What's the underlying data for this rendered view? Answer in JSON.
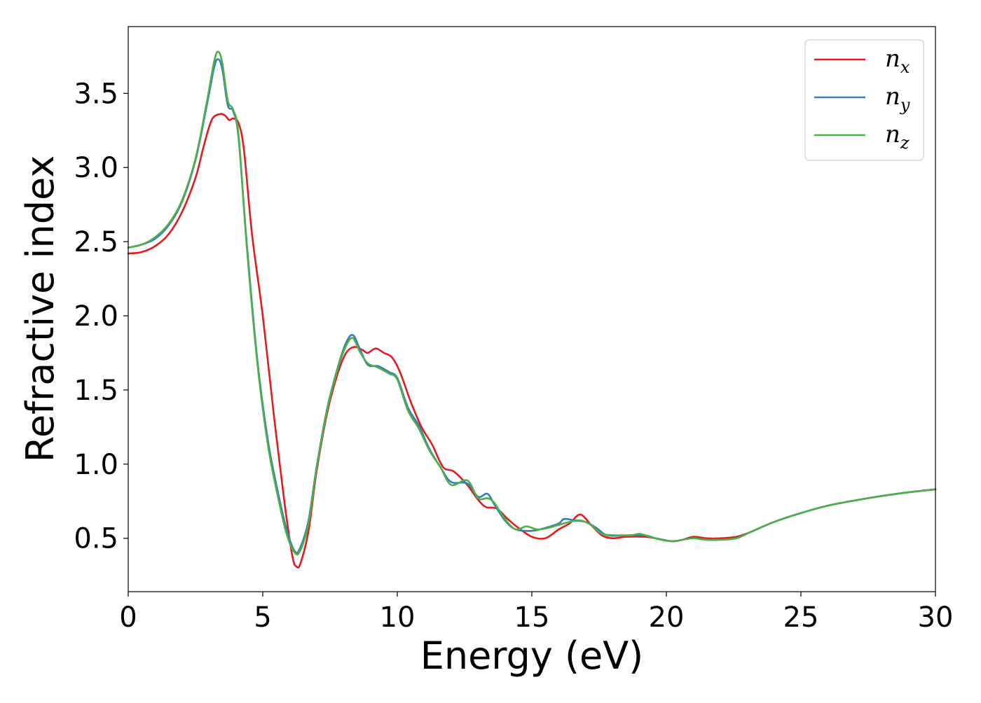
{
  "chart_data": {
    "type": "line",
    "xlabel": "Energy (eV)",
    "ylabel": "Refractive index",
    "xlim": [
      0,
      30
    ],
    "ylim": [
      0.14,
      3.95
    ],
    "xticks": [
      0,
      5,
      10,
      15,
      20,
      25,
      30
    ],
    "xtick_labels": [
      "0",
      "5",
      "10",
      "15",
      "20",
      "25",
      "30"
    ],
    "yticks": [
      0.5,
      1.0,
      1.5,
      2.0,
      2.5,
      3.0,
      3.5
    ],
    "ytick_labels": [
      "0.5",
      "1.0",
      "1.5",
      "2.0",
      "2.5",
      "3.0",
      "3.5"
    ],
    "grid": false,
    "legend_position": "top-right",
    "series": [
      {
        "name": "n",
        "subscript": "x",
        "color": "#e41a1c",
        "points": [
          [
            0,
            2.42
          ],
          [
            0.5,
            2.43
          ],
          [
            1,
            2.47
          ],
          [
            1.5,
            2.55
          ],
          [
            2,
            2.7
          ],
          [
            2.5,
            2.93
          ],
          [
            2.8,
            3.14
          ],
          [
            3.1,
            3.32
          ],
          [
            3.4,
            3.36
          ],
          [
            3.6,
            3.35
          ],
          [
            3.75,
            3.32
          ],
          [
            3.9,
            3.33
          ],
          [
            4.1,
            3.3
          ],
          [
            4.3,
            3.12
          ],
          [
            4.6,
            2.55
          ],
          [
            5.0,
            2.0
          ],
          [
            5.4,
            1.35
          ],
          [
            5.8,
            0.75
          ],
          [
            6.1,
            0.38
          ],
          [
            6.25,
            0.31
          ],
          [
            6.4,
            0.33
          ],
          [
            6.7,
            0.55
          ],
          [
            7.0,
            0.95
          ],
          [
            7.4,
            1.35
          ],
          [
            7.8,
            1.62
          ],
          [
            8.1,
            1.75
          ],
          [
            8.4,
            1.79
          ],
          [
            8.7,
            1.77
          ],
          [
            8.9,
            1.75
          ],
          [
            9.2,
            1.78
          ],
          [
            9.5,
            1.75
          ],
          [
            9.8,
            1.72
          ],
          [
            10.1,
            1.62
          ],
          [
            10.5,
            1.42
          ],
          [
            10.9,
            1.25
          ],
          [
            11.3,
            1.13
          ],
          [
            11.7,
            0.98
          ],
          [
            12.1,
            0.95
          ],
          [
            12.6,
            0.86
          ],
          [
            13.0,
            0.76
          ],
          [
            13.3,
            0.71
          ],
          [
            13.7,
            0.7
          ],
          [
            14.1,
            0.63
          ],
          [
            14.5,
            0.57
          ],
          [
            15.0,
            0.51
          ],
          [
            15.5,
            0.5
          ],
          [
            16.0,
            0.56
          ],
          [
            16.4,
            0.6
          ],
          [
            16.8,
            0.66
          ],
          [
            17.2,
            0.59
          ],
          [
            17.6,
            0.52
          ],
          [
            18.0,
            0.5
          ],
          [
            18.5,
            0.51
          ],
          [
            19.2,
            0.51
          ],
          [
            19.6,
            0.5
          ],
          [
            20.2,
            0.48
          ],
          [
            20.6,
            0.49
          ],
          [
            21.0,
            0.51
          ],
          [
            21.5,
            0.5
          ],
          [
            22.0,
            0.5
          ],
          [
            22.6,
            0.51
          ],
          [
            23.1,
            0.54
          ],
          [
            24.0,
            0.61
          ],
          [
            25.0,
            0.67
          ],
          [
            26.0,
            0.72
          ],
          [
            27.0,
            0.755
          ],
          [
            28.0,
            0.785
          ],
          [
            29.0,
            0.81
          ],
          [
            30.0,
            0.83
          ]
        ]
      },
      {
        "name": "n",
        "subscript": "y",
        "color": "#377eb8",
        "points": [
          [
            0,
            2.46
          ],
          [
            0.5,
            2.48
          ],
          [
            1,
            2.52
          ],
          [
            1.5,
            2.61
          ],
          [
            2,
            2.77
          ],
          [
            2.5,
            3.05
          ],
          [
            2.9,
            3.4
          ],
          [
            3.2,
            3.68
          ],
          [
            3.35,
            3.73
          ],
          [
            3.5,
            3.66
          ],
          [
            3.7,
            3.42
          ],
          [
            3.9,
            3.38
          ],
          [
            4.1,
            3.2
          ],
          [
            4.4,
            2.5
          ],
          [
            4.8,
            1.7
          ],
          [
            5.2,
            1.15
          ],
          [
            5.6,
            0.78
          ],
          [
            5.9,
            0.55
          ],
          [
            6.2,
            0.41
          ],
          [
            6.4,
            0.44
          ],
          [
            6.7,
            0.62
          ],
          [
            7.0,
            0.98
          ],
          [
            7.4,
            1.38
          ],
          [
            7.8,
            1.66
          ],
          [
            8.1,
            1.82
          ],
          [
            8.35,
            1.87
          ],
          [
            8.6,
            1.78
          ],
          [
            8.9,
            1.67
          ],
          [
            9.3,
            1.66
          ],
          [
            9.7,
            1.62
          ],
          [
            10.0,
            1.58
          ],
          [
            10.4,
            1.38
          ],
          [
            10.8,
            1.26
          ],
          [
            11.2,
            1.1
          ],
          [
            11.6,
            0.98
          ],
          [
            12.0,
            0.88
          ],
          [
            12.6,
            0.87
          ],
          [
            13.0,
            0.78
          ],
          [
            13.35,
            0.8
          ],
          [
            13.6,
            0.73
          ],
          [
            14.0,
            0.62
          ],
          [
            14.4,
            0.56
          ],
          [
            15.0,
            0.55
          ],
          [
            15.5,
            0.57
          ],
          [
            16.0,
            0.6
          ],
          [
            16.2,
            0.63
          ],
          [
            16.6,
            0.62
          ],
          [
            17.0,
            0.61
          ],
          [
            17.4,
            0.57
          ],
          [
            17.8,
            0.52
          ],
          [
            18.5,
            0.52
          ],
          [
            19.2,
            0.52
          ],
          [
            19.6,
            0.5
          ],
          [
            20.2,
            0.48
          ],
          [
            20.6,
            0.49
          ],
          [
            21.0,
            0.5
          ],
          [
            21.5,
            0.49
          ],
          [
            22.0,
            0.49
          ],
          [
            22.6,
            0.5
          ],
          [
            23.1,
            0.54
          ],
          [
            24.0,
            0.61
          ],
          [
            25.0,
            0.67
          ],
          [
            26.0,
            0.72
          ],
          [
            27.0,
            0.755
          ],
          [
            28.0,
            0.785
          ],
          [
            29.0,
            0.81
          ],
          [
            30.0,
            0.83
          ]
        ]
      },
      {
        "name": "n",
        "subscript": "z",
        "color": "#4daf4a",
        "points": [
          [
            0,
            2.46
          ],
          [
            0.5,
            2.48
          ],
          [
            1,
            2.53
          ],
          [
            1.5,
            2.62
          ],
          [
            2,
            2.78
          ],
          [
            2.5,
            3.06
          ],
          [
            2.9,
            3.42
          ],
          [
            3.2,
            3.72
          ],
          [
            3.35,
            3.78
          ],
          [
            3.5,
            3.7
          ],
          [
            3.7,
            3.45
          ],
          [
            3.9,
            3.39
          ],
          [
            4.1,
            3.22
          ],
          [
            4.4,
            2.48
          ],
          [
            4.8,
            1.68
          ],
          [
            5.2,
            1.12
          ],
          [
            5.6,
            0.75
          ],
          [
            5.9,
            0.52
          ],
          [
            6.2,
            0.4
          ],
          [
            6.4,
            0.42
          ],
          [
            6.7,
            0.6
          ],
          [
            7.0,
            0.97
          ],
          [
            7.4,
            1.37
          ],
          [
            7.8,
            1.65
          ],
          [
            8.1,
            1.8
          ],
          [
            8.35,
            1.85
          ],
          [
            8.6,
            1.76
          ],
          [
            8.9,
            1.68
          ],
          [
            9.3,
            1.65
          ],
          [
            9.7,
            1.61
          ],
          [
            10.0,
            1.57
          ],
          [
            10.4,
            1.36
          ],
          [
            10.8,
            1.24
          ],
          [
            11.2,
            1.09
          ],
          [
            11.6,
            0.98
          ],
          [
            12.0,
            0.86
          ],
          [
            12.6,
            0.89
          ],
          [
            13.0,
            0.77
          ],
          [
            13.35,
            0.77
          ],
          [
            13.6,
            0.74
          ],
          [
            14.0,
            0.63
          ],
          [
            14.4,
            0.56
          ],
          [
            14.8,
            0.58
          ],
          [
            15.2,
            0.56
          ],
          [
            15.6,
            0.57
          ],
          [
            16.0,
            0.59
          ],
          [
            16.4,
            0.61
          ],
          [
            16.8,
            0.62
          ],
          [
            17.2,
            0.59
          ],
          [
            17.6,
            0.53
          ],
          [
            18.2,
            0.52
          ],
          [
            18.7,
            0.52
          ],
          [
            19.0,
            0.53
          ],
          [
            19.4,
            0.51
          ],
          [
            19.8,
            0.49
          ],
          [
            20.2,
            0.48
          ],
          [
            20.6,
            0.49
          ],
          [
            21.0,
            0.5
          ],
          [
            21.5,
            0.49
          ],
          [
            22.0,
            0.49
          ],
          [
            22.6,
            0.5
          ],
          [
            23.1,
            0.54
          ],
          [
            24.0,
            0.61
          ],
          [
            25.0,
            0.67
          ],
          [
            26.0,
            0.72
          ],
          [
            27.0,
            0.755
          ],
          [
            28.0,
            0.785
          ],
          [
            29.0,
            0.81
          ],
          [
            30.0,
            0.83
          ]
        ]
      }
    ]
  }
}
